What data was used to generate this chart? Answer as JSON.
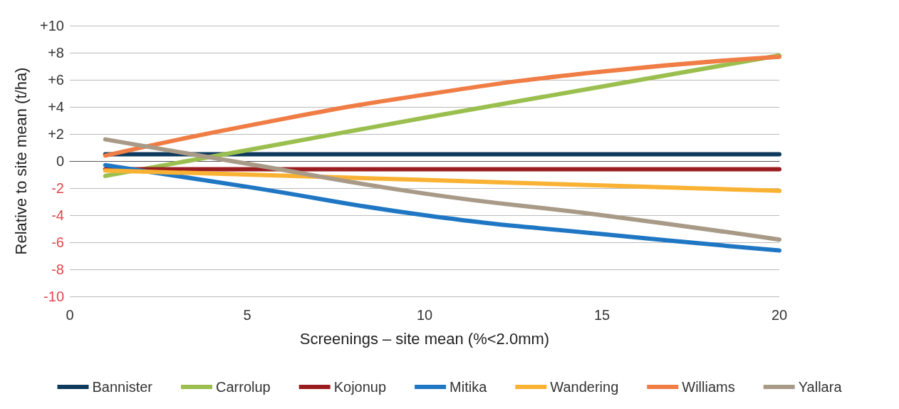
{
  "chart_data": {
    "type": "line",
    "xlabel": "Screenings – site mean (%<2.0mm)",
    "ylabel": "Relative to site mean (t/ha)",
    "x": [
      1,
      5,
      10,
      15,
      20
    ],
    "series": [
      {
        "name": "Bannister",
        "color": "#0d3a5c",
        "values": [
          0.5,
          0.5,
          0.5,
          0.5,
          0.5
        ]
      },
      {
        "name": "Carrolup",
        "color": "#9bbf4f",
        "values": [
          -1.1,
          0.8,
          3.2,
          5.5,
          7.8
        ]
      },
      {
        "name": "Kojonup",
        "color": "#9b1c1f",
        "values": [
          -0.6,
          -0.6,
          -0.6,
          -0.6,
          -0.6
        ]
      },
      {
        "name": "Mitika",
        "color": "#1f77c4",
        "values": [
          -0.3,
          -1.9,
          -4.0,
          -5.4,
          -6.6
        ]
      },
      {
        "name": "Wandering",
        "color": "#f9b233",
        "values": [
          -0.7,
          -1.0,
          -1.4,
          -1.8,
          -2.2
        ]
      },
      {
        "name": "Williams",
        "color": "#ef7d45",
        "values": [
          0.4,
          2.6,
          4.9,
          6.6,
          7.7
        ]
      },
      {
        "name": "Yallara",
        "color": "#a89a87",
        "values": [
          1.6,
          -0.2,
          -2.4,
          -4.0,
          -5.8
        ]
      }
    ],
    "xlim": [
      0,
      20
    ],
    "xticks": [
      0,
      5,
      10,
      15,
      20
    ],
    "ylim": [
      -10,
      10
    ],
    "yticks": [
      -10,
      -8,
      -6,
      -4,
      -2,
      0,
      {
        "value": 2,
        "label": "+2"
      },
      {
        "value": 4,
        "label": "+4"
      },
      {
        "value": 6,
        "label": "+6"
      },
      {
        "value": 8,
        "label": "+8"
      },
      {
        "value": 10,
        "label": "+10"
      }
    ],
    "grid": "y",
    "legend": "bottom",
    "marker": "none",
    "line_style": "solid"
  }
}
